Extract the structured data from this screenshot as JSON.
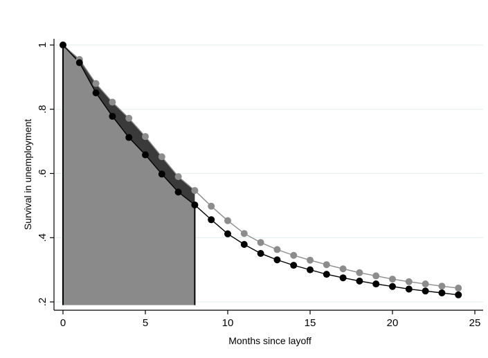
{
  "chart_data": {
    "type": "line",
    "title": "",
    "xlabel": "Months since layoff",
    "ylabel": "Survival in unemployment",
    "xlim": [
      0,
      25
    ],
    "ylim": [
      0.19,
      1.01
    ],
    "x_ticks": [
      0,
      5,
      10,
      15,
      20,
      25
    ],
    "x_tick_labels": [
      "0",
      "5",
      "10",
      "15",
      "20",
      "25"
    ],
    "y_ticks": [
      0.2,
      0.4,
      0.6,
      0.8,
      1.0
    ],
    "y_tick_labels": [
      ".2",
      ".4",
      ".6",
      ".8",
      "1"
    ],
    "grid": true,
    "legend": "none",
    "shaded_region_x": [
      0,
      8
    ],
    "x": [
      0,
      1,
      2,
      3,
      4,
      5,
      6,
      7,
      8,
      9,
      10,
      11,
      12,
      13,
      14,
      15,
      16,
      17,
      18,
      19,
      20,
      21,
      22,
      23,
      24
    ],
    "series": [
      {
        "color": "#8c8c8c",
        "values": [
          1.0,
          0.955,
          0.88,
          0.822,
          0.772,
          0.715,
          0.652,
          0.59,
          0.547,
          0.498,
          0.453,
          0.413,
          0.385,
          0.363,
          0.345,
          0.33,
          0.316,
          0.303,
          0.291,
          0.281,
          0.271,
          0.263,
          0.256,
          0.249,
          0.243
        ]
      },
      {
        "color": "#000000",
        "values": [
          1.0,
          0.945,
          0.851,
          0.778,
          0.712,
          0.658,
          0.598,
          0.542,
          0.502,
          0.456,
          0.412,
          0.379,
          0.351,
          0.331,
          0.314,
          0.3,
          0.286,
          0.275,
          0.265,
          0.256,
          0.248,
          0.24,
          0.234,
          0.228,
          0.222
        ]
      }
    ],
    "colors": {
      "shade_light": "#8a8a8a",
      "shade_dark": "#3a3a3a",
      "grid": "#e6eff0"
    }
  }
}
